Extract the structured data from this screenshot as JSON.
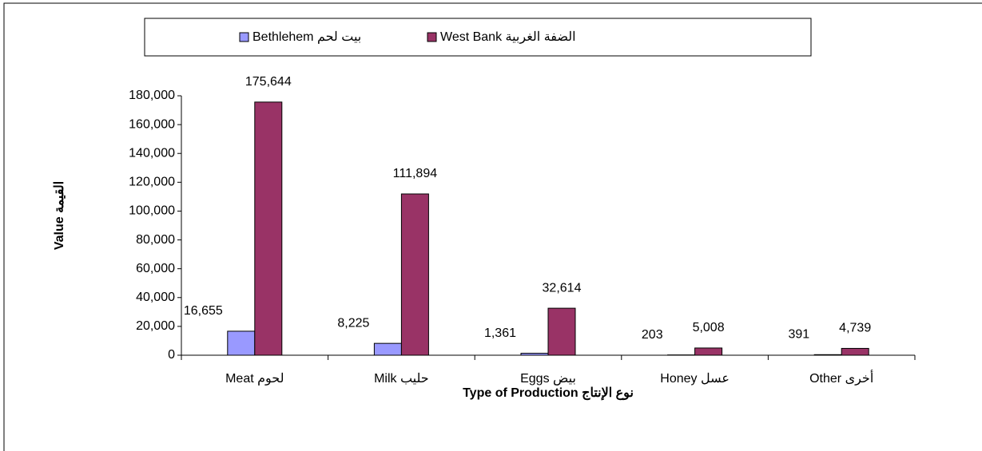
{
  "chart_data": {
    "type": "bar",
    "y_axis_label": "Value القيمة",
    "x_axis_label": "Type of Production نوع الإنتاج",
    "categories": [
      "Meat لحوم",
      "Milk حليب",
      "Eggs بيض",
      "Honey عسل",
      "Other أخرى"
    ],
    "series": [
      {
        "name": "Bethlehem بيت لحم",
        "color": "#9999ff",
        "values": [
          16655,
          8225,
          1361,
          203,
          391
        ],
        "value_labels": [
          "16,655",
          "8,225",
          "1,361",
          "203",
          "391"
        ]
      },
      {
        "name": "West Bank الضفة الغربية",
        "color": "#993366",
        "values": [
          175644,
          111894,
          32614,
          5008,
          4739
        ],
        "value_labels": [
          "175,644",
          "111,894",
          "32,614",
          "5,008",
          "4,739"
        ]
      }
    ],
    "ylim": [
      0,
      180000
    ],
    "yticks": [
      0,
      {
        "value": 20000,
        "label": "20,000"
      },
      {
        "value": 40000,
        "label": "40,000"
      },
      {
        "value": 60000,
        "label": "60,000"
      },
      {
        "value": 80000,
        "label": "80,000"
      },
      {
        "value": 100000,
        "label": "100,000"
      },
      {
        "value": 120000,
        "label": "120,000"
      },
      {
        "value": 140000,
        "label": "140,000"
      },
      {
        "value": 160000,
        "label": "160,000"
      },
      {
        "value": 180000,
        "label": "180,000"
      }
    ],
    "legend": "top"
  }
}
